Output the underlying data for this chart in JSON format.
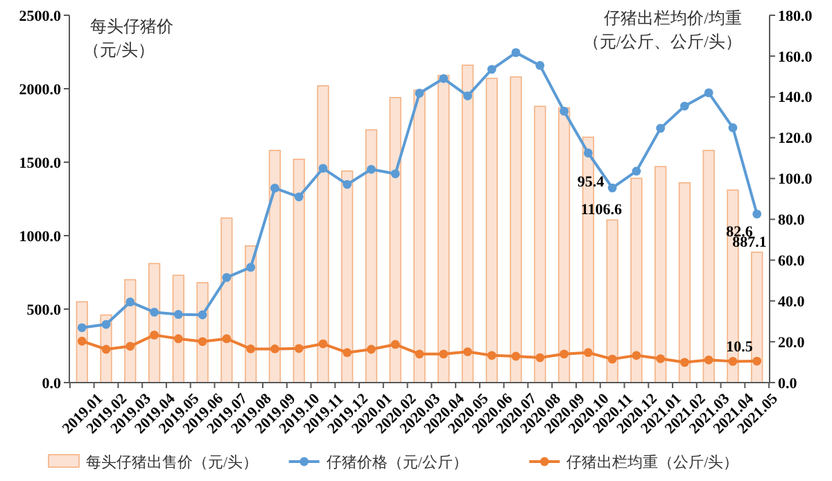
{
  "chart_data": {
    "type": "bar",
    "ylabel": "每头仔猪价（元/头）",
    "y2label": "仔猪出栏均价/均重（元/公斤、公斤/头）",
    "categories": [
      "2019.01",
      "2019.02",
      "2019.03",
      "2019.04",
      "2019.05",
      "2019.06",
      "2019.07",
      "2019.08",
      "2019.09",
      "2019.10",
      "2019.11",
      "2019.12",
      "2020.01",
      "2020.02",
      "2020.03",
      "2020.04",
      "2020.05",
      "2020.06",
      "2020.07",
      "2020.08",
      "2020.09",
      "2020.10",
      "2020.11",
      "2020.12",
      "2021.01",
      "2021.02",
      "2021.03",
      "2021.04",
      "2021.05"
    ],
    "series": [
      {
        "name": "每头仔猪出售价（元/头）",
        "color": "#fbe2d3",
        "values": [
          550,
          460,
          700,
          810,
          730,
          680,
          1120,
          930,
          1580,
          1520,
          2020,
          1440,
          1720,
          1940,
          1990,
          2090,
          2160,
          2070,
          2080,
          1880,
          1870,
          1670,
          1106.6,
          1390,
          1470,
          1360,
          1580,
          1310,
          887.1
        ],
        "value_labels": [
          null,
          null,
          null,
          null,
          null,
          null,
          null,
          null,
          null,
          null,
          null,
          null,
          null,
          null,
          null,
          null,
          null,
          null,
          null,
          null,
          null,
          null,
          "1106.6",
          null,
          null,
          null,
          null,
          null,
          "887.1"
        ]
      },
      {
        "name": "仔猪价格（元/公斤）",
        "type": "line",
        "axis": "y2",
        "color": "#5b9bd5",
        "values": [
          26.9,
          28.5,
          39.5,
          34.5,
          33.4,
          33.2,
          51.5,
          56.5,
          95.3,
          91.0,
          105.0,
          97.1,
          104.5,
          102.3,
          141.8,
          149.0,
          140.5,
          153.5,
          161.7,
          155.4,
          133.0,
          112.5,
          95.4,
          103.6,
          124.6,
          135.5,
          142.0,
          124.9,
          82.6
        ],
        "value_labels": [
          null,
          null,
          null,
          null,
          null,
          null,
          null,
          null,
          null,
          null,
          null,
          null,
          null,
          null,
          null,
          null,
          null,
          null,
          null,
          null,
          null,
          null,
          "95.4",
          null,
          null,
          null,
          null,
          null,
          "82.6"
        ]
      },
      {
        "name": "仔猪出栏均重（公斤/头）",
        "type": "line",
        "axis": "y2",
        "color": "#ed7d31",
        "values": [
          20.3,
          16.3,
          17.8,
          23.3,
          21.5,
          20.1,
          21.5,
          16.5,
          16.5,
          16.7,
          19.0,
          14.7,
          16.3,
          18.7,
          14.0,
          14.0,
          15.1,
          13.3,
          12.9,
          12.2,
          14.0,
          14.7,
          11.5,
          13.3,
          11.7,
          9.9,
          11.1,
          10.4,
          10.5
        ],
        "value_labels": [
          null,
          null,
          null,
          null,
          null,
          null,
          null,
          null,
          null,
          null,
          null,
          null,
          null,
          null,
          null,
          null,
          null,
          null,
          null,
          null,
          null,
          null,
          null,
          null,
          null,
          null,
          null,
          null,
          "10.5"
        ]
      }
    ],
    "ylim": [
      0,
      2500
    ],
    "yticks": [
      {
        "value": 0,
        "label": "0.0"
      },
      {
        "value": 500,
        "label": "500.0"
      },
      {
        "value": 1000,
        "label": "1000.0"
      },
      {
        "value": 1500,
        "label": "1500.0"
      },
      {
        "value": 2000,
        "label": "2000.0"
      },
      {
        "value": 2500,
        "label": "2500.0"
      }
    ],
    "y2lim": [
      0,
      180
    ],
    "y2ticks": [
      {
        "value": 0,
        "label": "0.0"
      },
      {
        "value": 20,
        "label": "20.0"
      },
      {
        "value": 40,
        "label": "40.0"
      },
      {
        "value": 60,
        "label": "60.0"
      },
      {
        "value": 80,
        "label": "80.0"
      },
      {
        "value": 100,
        "label": "100.0"
      },
      {
        "value": 120,
        "label": "120.0"
      },
      {
        "value": 140,
        "label": "140.0"
      },
      {
        "value": 160,
        "label": "160.0"
      },
      {
        "value": 180,
        "label": "180.0"
      }
    ],
    "marker": "circle",
    "legend": "bottom",
    "grid": false
  }
}
